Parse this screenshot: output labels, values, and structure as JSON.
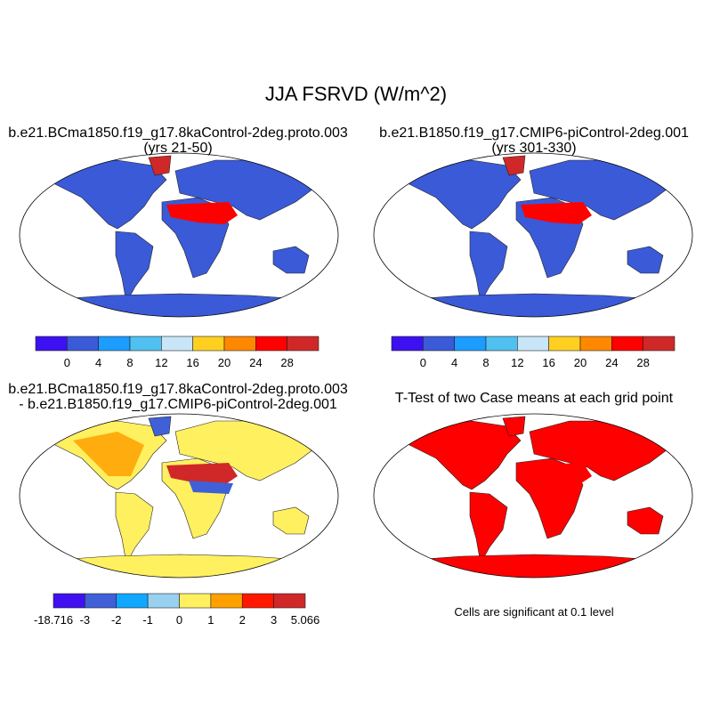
{
  "title": "JJA FSRVD (W/m^2)",
  "panels": [
    {
      "title1": "b.e21.BCma1850.f19_g17.8kaControl-2deg.proto.003",
      "title2": "(yrs 21-50)",
      "land": "#3a5ad8",
      "hot": "#ff0000",
      "greenland": "#d02828"
    },
    {
      "title1": "b.e21.B1850.f19_g17.CMIP6-piControl-2deg.001",
      "title2": "(yrs 301-330)",
      "land": "#3a5ad8",
      "hot": "#ff0000",
      "greenland": "#d02828"
    },
    {
      "title1": "b.e21.BCma1850.f19_g17.8kaControl-2deg.proto.003",
      "title2": "- b.e21.B1850.f19_g17.CMIP6-piControl-2deg.001",
      "land": "#fff060",
      "hot": "#d02828",
      "greenland": "#4060d8"
    },
    {
      "title1": "T-Test of two Case means at each grid point",
      "title2": "",
      "land": "#ff0000",
      "hot": "#ff0000",
      "greenland": "#ff0000"
    }
  ],
  "colorbars": [
    {
      "labels": [
        "0",
        "4",
        "8",
        "12",
        "16",
        "20",
        "24",
        "28"
      ],
      "colors": [
        "#3c10f0",
        "#3a5ad8",
        "#1c9cff",
        "#50c0f0",
        "#c8e6f8",
        "#ffd020",
        "#ff8800",
        "#ff0000",
        "#d02828"
      ]
    },
    {
      "labels": [
        "0",
        "4",
        "8",
        "12",
        "16",
        "20",
        "24",
        "28"
      ],
      "colors": [
        "#3c10f0",
        "#3a5ad8",
        "#1c9cff",
        "#50c0f0",
        "#c8e6f8",
        "#ffd020",
        "#ff8800",
        "#ff0000",
        "#d02828"
      ]
    },
    {
      "labels": [
        "-18.716",
        "-3",
        "-2",
        "-1",
        "0",
        "1",
        "2",
        "3",
        "5.066"
      ],
      "colors": [
        "#4010f0",
        "#4060d8",
        "#10a8ff",
        "#98d0f0",
        "#fff060",
        "#ffa000",
        "#ff1800",
        "#d02828"
      ]
    }
  ],
  "ttest_caption": "Cells are significant at 0.1 level"
}
